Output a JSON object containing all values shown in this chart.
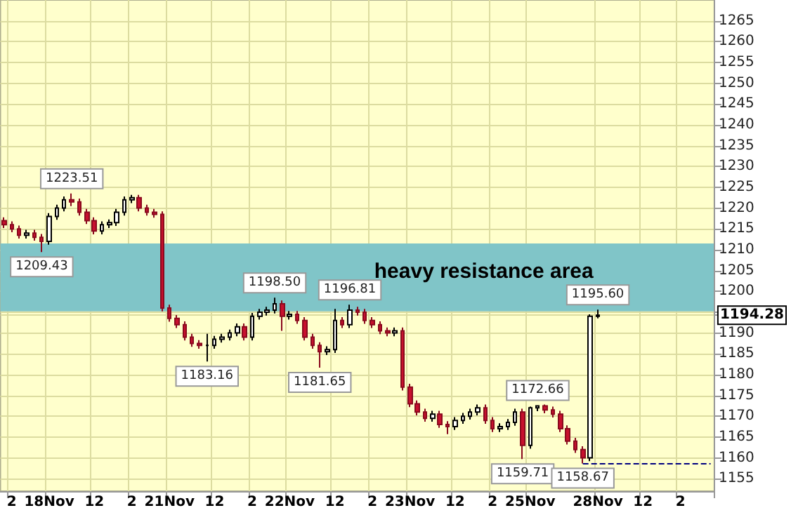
{
  "chart_data": {
    "type": "candlestick",
    "categories": [
      null,
      "2",
      null,
      null,
      null,
      null,
      "18Nov",
      null,
      null,
      null,
      null,
      null,
      "12",
      null,
      null,
      null,
      null,
      "2",
      null,
      null,
      null,
      null,
      "21Nov",
      null,
      null,
      null,
      null,
      null,
      "12",
      null,
      null,
      null,
      null,
      "2",
      null,
      null,
      null,
      null,
      "22Nov",
      null,
      null,
      null,
      null,
      null,
      "12",
      null,
      null,
      null,
      null,
      "2",
      null,
      null,
      null,
      null,
      "23Nov",
      null,
      null,
      null,
      null,
      null,
      "12",
      null,
      null,
      null,
      null,
      "2",
      null,
      null,
      null,
      null,
      "25Nov",
      null,
      null,
      null,
      null,
      null,
      null,
      null,
      null,
      "28Nov",
      null,
      null,
      null,
      null,
      null,
      "12",
      null,
      null,
      null,
      null,
      "2",
      null,
      null,
      null,
      null
    ],
    "ohlc": [
      [
        1217,
        1217.8,
        1215.2,
        1216
      ],
      [
        1216,
        1216.8,
        1214.2,
        1215
      ],
      [
        1215,
        1215.8,
        1212.7,
        1213.5
      ],
      [
        1213.5,
        1214.8,
        1212.7,
        1214
      ],
      [
        1214,
        1214.8,
        1212.2,
        1213
      ],
      [
        1213,
        1213.8,
        1209.43,
        1212
      ],
      [
        1212,
        1218.8,
        1211.2,
        1218
      ],
      [
        1218,
        1220.8,
        1217.2,
        1220
      ],
      [
        1220,
        1222.8,
        1219.2,
        1222
      ],
      [
        1222,
        1223.51,
        1220.5,
        1221.5
      ],
      [
        1221.5,
        1222.3,
        1218.2,
        1219
      ],
      [
        1219,
        1219.8,
        1216.2,
        1217
      ],
      [
        1217,
        1217.8,
        1213.7,
        1214.5
      ],
      [
        1214.5,
        1216.8,
        1213.7,
        1216
      ],
      [
        1216,
        1217.3,
        1215.2,
        1216.5
      ],
      [
        1216.5,
        1219.8,
        1215.7,
        1219
      ],
      [
        1219,
        1222.8,
        1218.2,
        1222
      ],
      [
        1222,
        1223.2,
        1221.2,
        1222.5
      ],
      [
        1222.5,
        1223.2,
        1219.2,
        1220
      ],
      [
        1220,
        1220.8,
        1218.2,
        1219
      ],
      [
        1219,
        1219.8,
        1217.7,
        1218.5
      ],
      [
        1218.5,
        1219.2,
        1195.2,
        1196
      ],
      [
        1196,
        1196.8,
        1192.7,
        1193.5
      ],
      [
        1193.5,
        1194.3,
        1191.2,
        1192
      ],
      [
        1192,
        1192.8,
        1188.2,
        1189
      ],
      [
        1189,
        1189.8,
        1186.7,
        1187.5
      ],
      [
        1187.5,
        1188.3,
        1186.2,
        1187
      ],
      [
        1187,
        1189.8,
        1183.16,
        1187
      ],
      [
        1187,
        1189.3,
        1186.2,
        1188.5
      ],
      [
        1188.5,
        1189.8,
        1187.7,
        1189
      ],
      [
        1189,
        1190.8,
        1188.2,
        1190
      ],
      [
        1190,
        1192.3,
        1189.2,
        1191.5
      ],
      [
        1191.5,
        1192.3,
        1188.2,
        1189
      ],
      [
        1189,
        1194.8,
        1188.2,
        1194
      ],
      [
        1194,
        1195.8,
        1193.2,
        1195
      ],
      [
        1195,
        1196.3,
        1194.2,
        1195.5
      ],
      [
        1195.5,
        1198.5,
        1194.7,
        1197
      ],
      [
        1197,
        1197.8,
        1190.5,
        1194
      ],
      [
        1194,
        1195.3,
        1193.2,
        1194.5
      ],
      [
        1194.5,
        1195.3,
        1192.2,
        1193
      ],
      [
        1193,
        1193.8,
        1188.2,
        1189
      ],
      [
        1189,
        1189.8,
        1186.2,
        1187
      ],
      [
        1187,
        1187.8,
        1181.65,
        1185.5
      ],
      [
        1185.5,
        1186.8,
        1184.7,
        1186
      ],
      [
        1186,
        1195.8,
        1185.2,
        1193
      ],
      [
        1193,
        1193.8,
        1191.2,
        1192
      ],
      [
        1192,
        1196.81,
        1191.2,
        1195.5
      ],
      [
        1195.5,
        1196.3,
        1194.2,
        1195
      ],
      [
        1195,
        1195.8,
        1192.2,
        1193
      ],
      [
        1193,
        1193.8,
        1191.2,
        1192
      ],
      [
        1192,
        1192.8,
        1189.7,
        1190.5
      ],
      [
        1190.5,
        1191.3,
        1189.2,
        1190
      ],
      [
        1190,
        1191.3,
        1189.2,
        1190.5
      ],
      [
        1190.5,
        1191.3,
        1176.2,
        1177
      ],
      [
        1177,
        1177.8,
        1172.2,
        1173
      ],
      [
        1173,
        1173.8,
        1170.2,
        1171
      ],
      [
        1171,
        1171.8,
        1168.7,
        1169.5
      ],
      [
        1169.5,
        1171.3,
        1168.7,
        1170.5
      ],
      [
        1170.5,
        1171.3,
        1167.2,
        1168
      ],
      [
        1168,
        1168.8,
        1165.7,
        1167.5
      ],
      [
        1167.5,
        1169.8,
        1166.7,
        1169
      ],
      [
        1169,
        1170.8,
        1168.2,
        1170
      ],
      [
        1170,
        1171.8,
        1169.2,
        1171
      ],
      [
        1171,
        1172.8,
        1170.2,
        1172
      ],
      [
        1172,
        1172.8,
        1168.2,
        1169
      ],
      [
        1169,
        1169.8,
        1166.2,
        1167
      ],
      [
        1167,
        1168.3,
        1166.2,
        1167.5
      ],
      [
        1167.5,
        1169.3,
        1166.7,
        1168.5
      ],
      [
        1168.5,
        1171.8,
        1167.7,
        1171
      ],
      [
        1171,
        1171.8,
        1159.71,
        1163
      ],
      [
        1163,
        1172.3,
        1162.2,
        1172
      ],
      [
        1172,
        1172.66,
        1171.2,
        1172.5
      ],
      [
        1172.5,
        1172.8,
        1170.7,
        1171.5
      ],
      [
        1171.5,
        1172.3,
        1169.7,
        1170.5
      ],
      [
        1170.5,
        1171.3,
        1166.2,
        1167
      ],
      [
        1167,
        1167.8,
        1163.2,
        1164
      ],
      [
        1164,
        1164.8,
        1161.2,
        1162
      ],
      [
        1162,
        1162.8,
        1158.67,
        1160
      ],
      [
        1160,
        1194.5,
        1159.2,
        1194
      ],
      [
        1194,
        1195.6,
        1193.5,
        1194.28
      ],
      null,
      null,
      null,
      null,
      null,
      null,
      null,
      null,
      null,
      null,
      null,
      null,
      null,
      null,
      null
    ],
    "ylim": [
      1152,
      1270
    ],
    "yticks": [
      1155,
      1160,
      1165,
      1170,
      1175,
      1180,
      1185,
      1190,
      {
        "value": 1194.28,
        "label": "1194.28"
      },
      {
        "value": 1195,
        "label": null
      },
      1200,
      1205,
      1210,
      1215,
      1220,
      1225,
      1230,
      1235,
      1240,
      1245,
      1250,
      1255,
      1260,
      1265
    ],
    "grid": true,
    "bands": [
      {
        "axis": "y",
        "from": 1195.2,
        "to": 1211.5,
        "label": "heavy resistance area",
        "color": "#80c5c8"
      }
    ],
    "ref_lines": [
      {
        "axis": "y",
        "value": 1158.67,
        "color": "#000080",
        "line_style": "dashed"
      }
    ],
    "annotations": [
      {
        "text": "1209.43",
        "y": 1209.43
      },
      {
        "text": "1223.51",
        "y": 1223.51
      },
      {
        "text": "1183.16",
        "y": 1183.16
      },
      {
        "text": "1198.50",
        "y": 1198.5
      },
      {
        "text": "1181.65",
        "y": 1181.65
      },
      {
        "text": "1196.81",
        "y": 1196.81
      },
      {
        "text": "1172.66",
        "y": 1172.66
      },
      {
        "text": "1159.71",
        "y": 1159.71
      },
      {
        "text": "1158.67",
        "y": 1158.67
      },
      {
        "text": "1195.60",
        "y": 1195.6
      }
    ]
  }
}
